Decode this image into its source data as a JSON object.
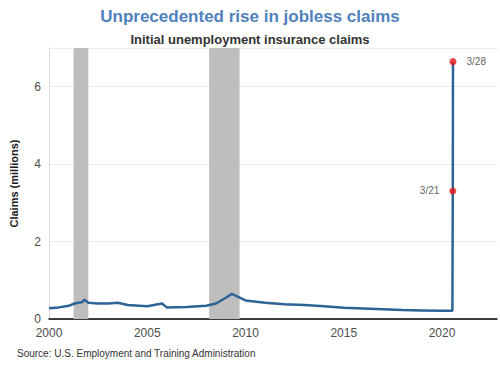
{
  "chart_data": {
    "type": "line",
    "title": "Unprecedented rise in jobless claims",
    "subtitle": "Initial unemployment insurance claims",
    "y_label": "Claims (millions)",
    "source": "Source: U.S. Employment and Training Administration",
    "color": "#2e6395",
    "x": [
      2000.0,
      2000.5,
      2001.0,
      2001.3,
      2001.7,
      2001.8,
      2002.0,
      2002.5,
      2003.0,
      2003.5,
      2004.0,
      2005.0,
      2005.75,
      2006.0,
      2007.0,
      2008.0,
      2008.5,
      2009.0,
      2009.3,
      2009.6,
      2010.0,
      2011.0,
      2012.0,
      2013.0,
      2014.0,
      2015.0,
      2016.0,
      2017.0,
      2018.0,
      2019.0,
      2020.0,
      2020.53,
      2020.55,
      2020.56
    ],
    "values": [
      0.28,
      0.3,
      0.34,
      0.4,
      0.44,
      0.5,
      0.42,
      0.4,
      0.4,
      0.42,
      0.36,
      0.33,
      0.4,
      0.3,
      0.31,
      0.34,
      0.4,
      0.55,
      0.65,
      0.58,
      0.48,
      0.42,
      0.38,
      0.36,
      0.33,
      0.29,
      0.27,
      0.25,
      0.23,
      0.22,
      0.21,
      0.21,
      3.307,
      6.648
    ],
    "xlim": [
      2000,
      2022.8
    ],
    "xticks": [
      2000,
      2005,
      2010,
      2015,
      2020
    ],
    "ylim": [
      0,
      7
    ],
    "yticks": [
      0,
      2,
      4,
      6
    ],
    "grid": true,
    "recessions": [
      [
        2001.25,
        2002.0
      ],
      [
        2008.15,
        2009.7
      ]
    ],
    "annotations": [
      {
        "x": 2020.55,
        "y": 3.307,
        "text": "3/21",
        "color": "#e8141c"
      },
      {
        "x": 2020.56,
        "y": 6.648,
        "text": "3/28",
        "color": "#e8141c"
      }
    ]
  }
}
